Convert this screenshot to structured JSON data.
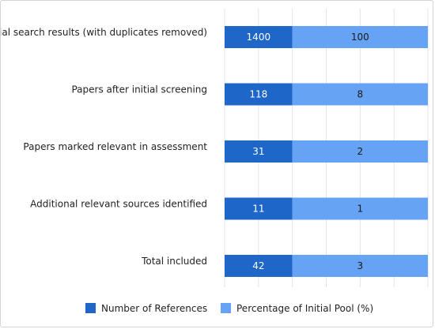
{
  "chart_data": {
    "type": "bar",
    "orientation": "horizontal",
    "stacked": true,
    "categories": [
      "Initial search results (with duplicates removed)",
      "Papers after initial screening",
      "Papers marked relevant in assessment",
      "Additional relevant sources identified",
      "Total included"
    ],
    "series": [
      {
        "name": "Number of References",
        "values": [
          1400,
          118,
          31,
          11,
          42
        ],
        "color": "#1e66c8"
      },
      {
        "name": "Percentage of Initial Pool (%)",
        "values": [
          100,
          8,
          2,
          1,
          3
        ],
        "color": "#66a3f5"
      }
    ],
    "data_labels": true,
    "grid": "vertical",
    "legend_position": "bottom"
  }
}
